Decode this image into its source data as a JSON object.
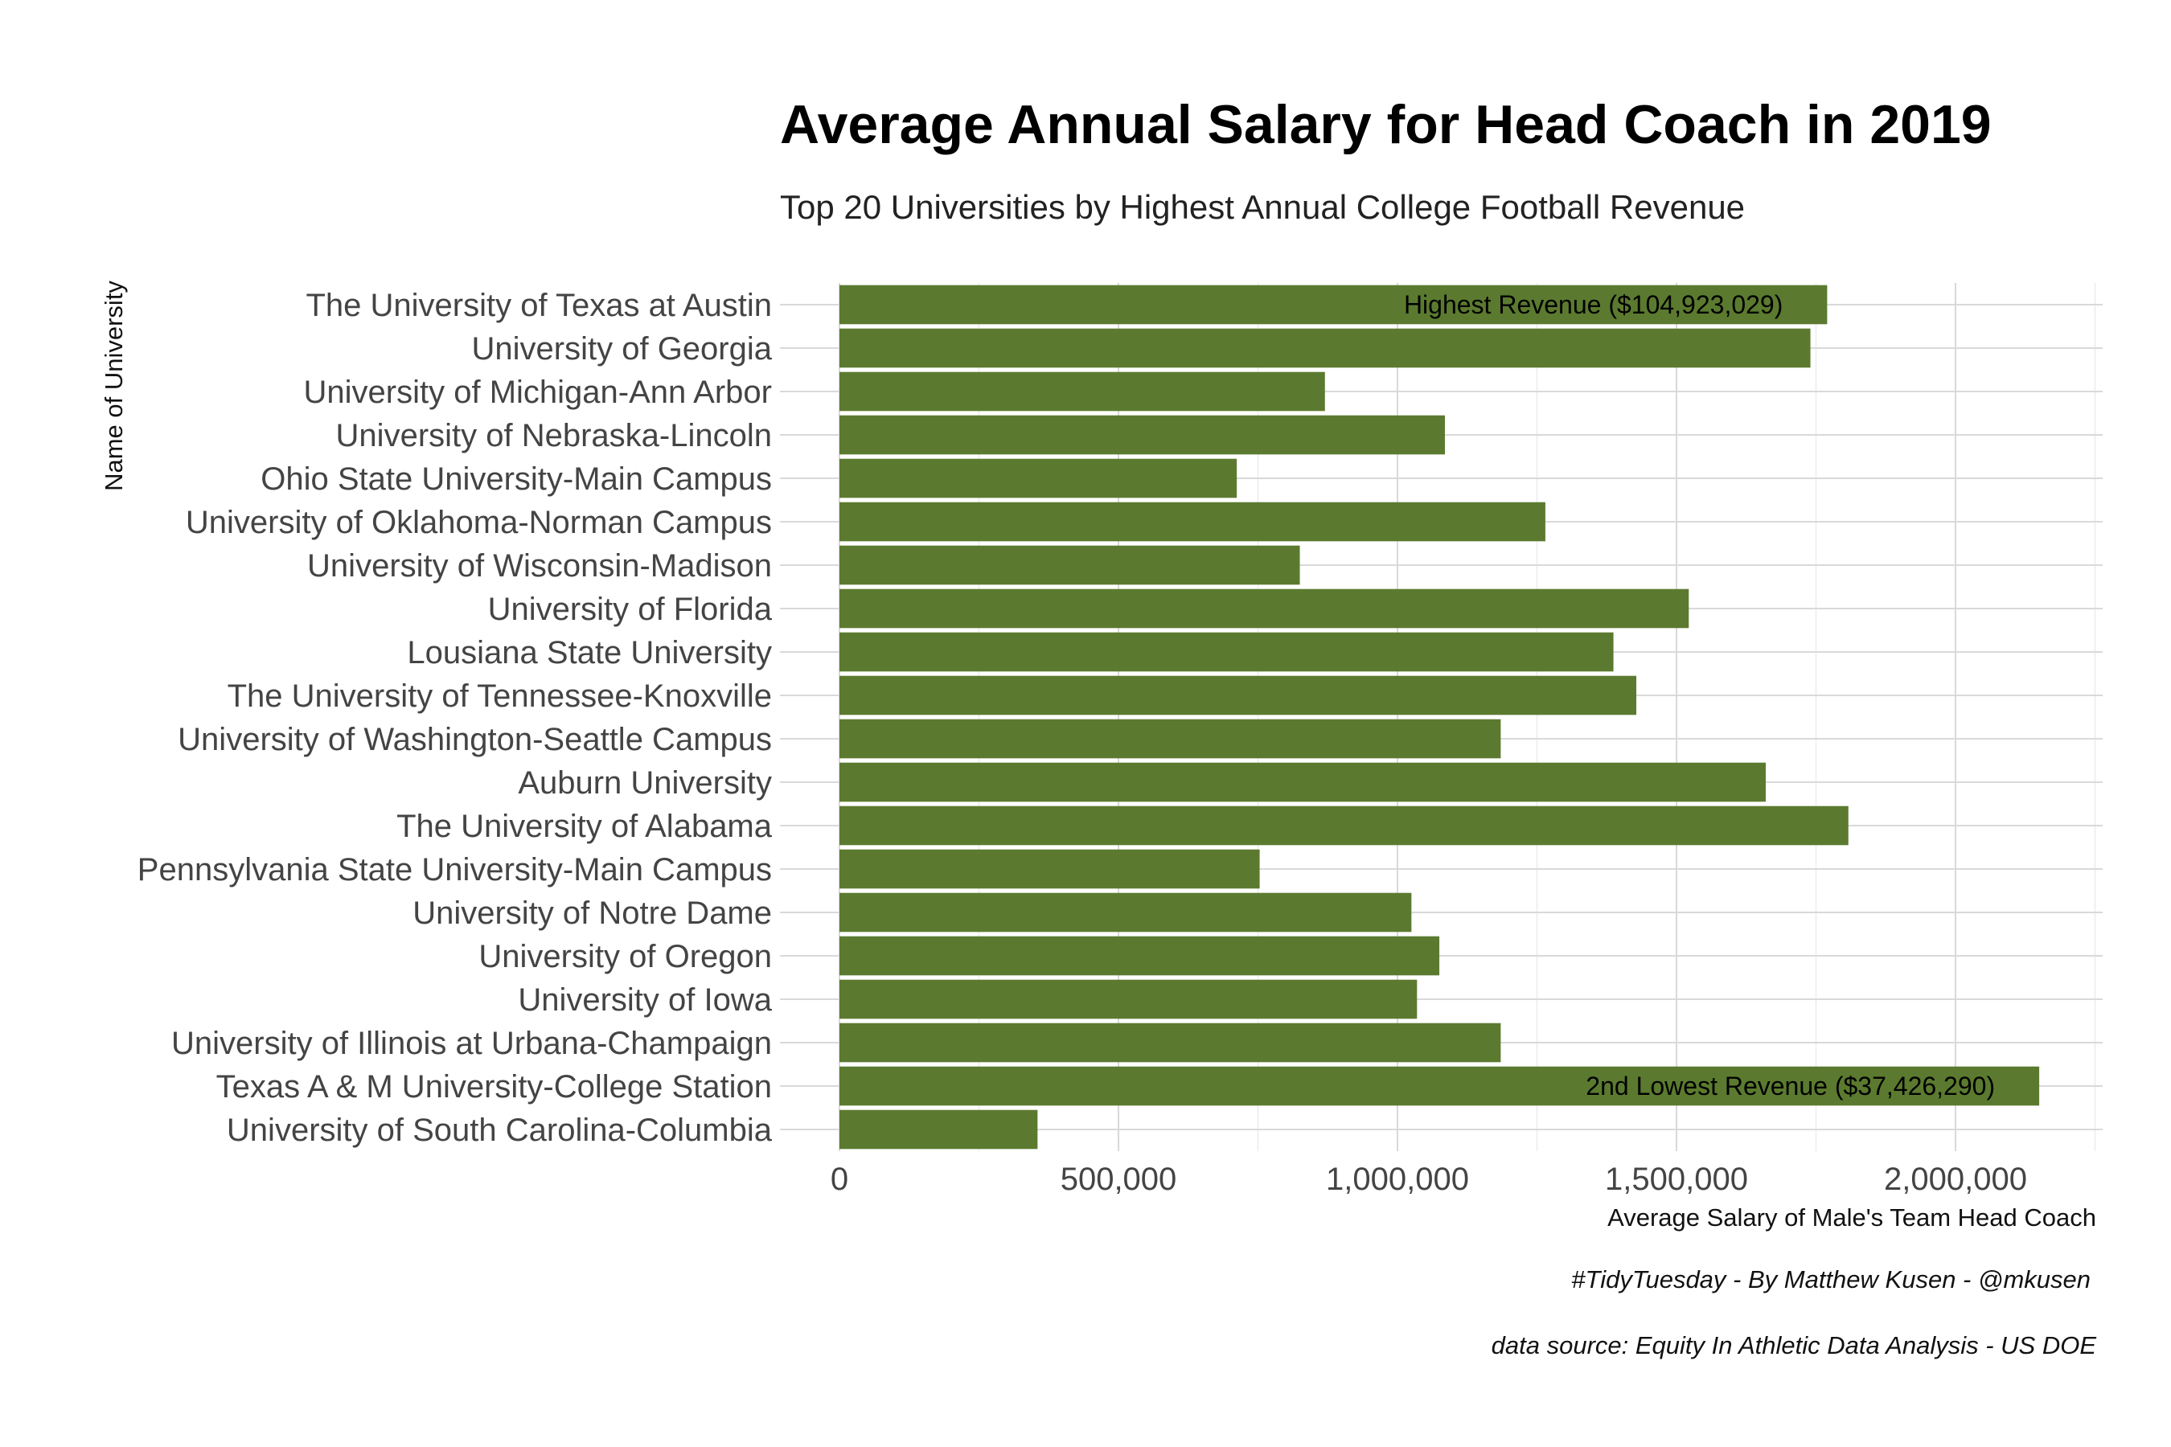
{
  "chart_data": {
    "type": "bar",
    "orientation": "horizontal",
    "title": "Average Annual Salary for Head Coach in 2019",
    "subtitle": "Top 20 Universities by Highest Annual College Football Revenue",
    "xlabel": "Average Salary of Male's Team Head Coach",
    "ylabel": "Name of University",
    "xlim": [
      0,
      2250000
    ],
    "x_ticks": [
      0,
      500000,
      1000000,
      1500000,
      2000000
    ],
    "x_tick_labels": [
      "0",
      "500,000",
      "1,000,000",
      "1,500,000",
      "2,000,000"
    ],
    "grid": true,
    "bar_color": "#5b7a2f",
    "categories": [
      "The University of Texas at Austin",
      "University of Georgia",
      "University of Michigan-Ann Arbor",
      "University of Nebraska-Lincoln",
      "Ohio State University-Main Campus",
      "University of Oklahoma-Norman Campus",
      "University of Wisconsin-Madison",
      "University of Florida",
      "Lousiana State University",
      "The University of Tennessee-Knoxville",
      "University of Washington-Seattle Campus",
      "Auburn University",
      "The University of Alabama",
      "Pennsylvania State University-Main Campus",
      "University of Notre Dame",
      "University of Oregon",
      "University of Iowa",
      "University of Illinois at Urbana-Champaign",
      "Texas A & M University-College Station",
      "University of South Carolina-Columbia"
    ],
    "values": [
      1770000,
      1740000,
      870000,
      1085000,
      712000,
      1265000,
      825000,
      1522000,
      1387000,
      1428000,
      1185000,
      1660000,
      1808000,
      753000,
      1025000,
      1075000,
      1035000,
      1185000,
      2150000,
      355000
    ],
    "annotations": [
      {
        "category_index": 0,
        "text": "Highest Revenue ($104,923,029)"
      },
      {
        "category_index": 18,
        "text": "2nd Lowest Revenue ($37,426,290)"
      }
    ],
    "caption_lines": [
      "#TidyTuesday -  By Matthew Kusen - @mkusen",
      "data source: Equity In Athletic Data Analysis - US DOE"
    ]
  }
}
